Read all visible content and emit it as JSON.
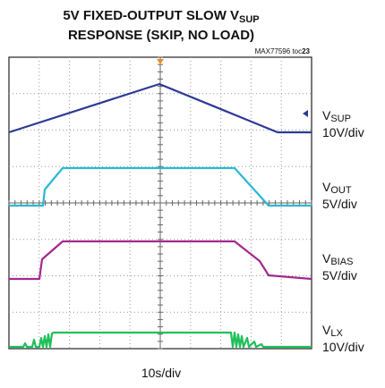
{
  "header": {
    "title_main": "5V FIXED-OUTPUT SLOW V",
    "title_sub": "SUP",
    "title_line2": "RESPONSE (SKIP, NO LOAD)",
    "toc_prefix": "MAX77596 toc",
    "toc_number": "23"
  },
  "channels": [
    {
      "letter": "V",
      "sub": "SUP",
      "scale": "10V/div"
    },
    {
      "letter": "V",
      "sub": "OUT",
      "scale": "5V/div"
    },
    {
      "letter": "V",
      "sub": "BIAS",
      "scale": "5V/div"
    },
    {
      "letter": "V",
      "sub": "LX",
      "scale": "10V/div"
    }
  ],
  "time_scale": "10s/div"
}
